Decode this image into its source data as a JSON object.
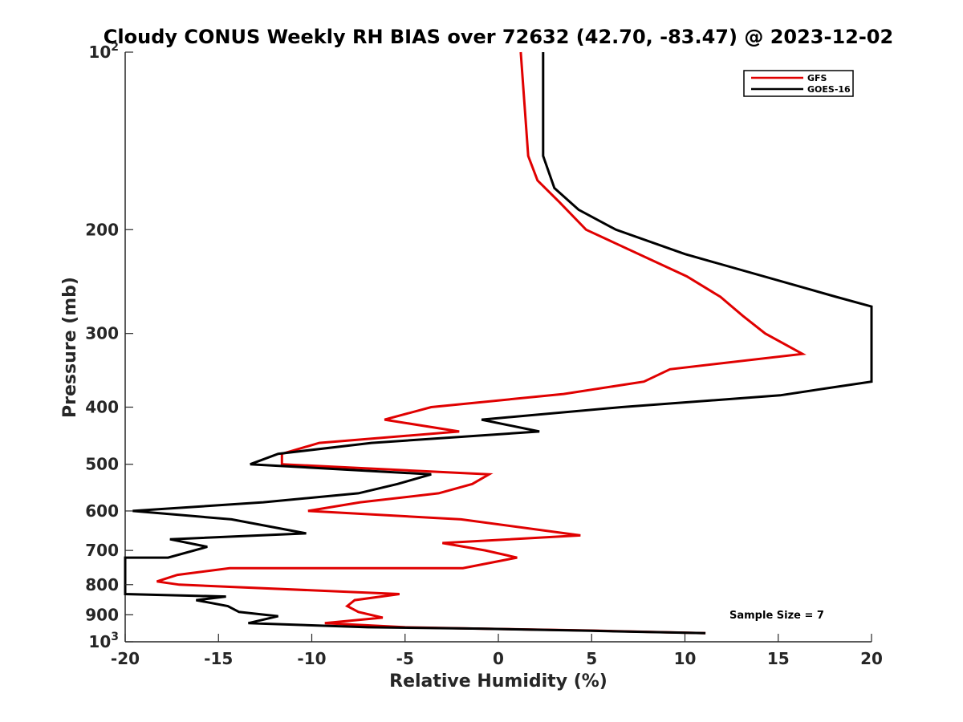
{
  "colors": {
    "GFS": "#e00000",
    "GOES-16": "#000000"
  },
  "chart_data": {
    "type": "line",
    "title": "Cloudy CONUS Weekly RH BIAS over 72632 (42.70, -83.47) @ 2023-12-02",
    "xlabel": "Relative Humidity (%)",
    "ylabel": "Pressure (mb)",
    "xlim": [
      -20,
      20
    ],
    "ylim": [
      100,
      1000
    ],
    "y_scale": "log",
    "y_reversed": true,
    "x_ticks": [
      "-20",
      "-15",
      "-10",
      "-5",
      "0",
      "5",
      "10",
      "15",
      "20"
    ],
    "y_ticks": [
      {
        "value": 100,
        "base": "10",
        "exp": "2"
      },
      {
        "value": 200,
        "label": "200"
      },
      {
        "value": 300,
        "label": "300"
      },
      {
        "value": 400,
        "label": "400"
      },
      {
        "value": 500,
        "label": "500"
      },
      {
        "value": 600,
        "label": "600"
      },
      {
        "value": 700,
        "label": "700"
      },
      {
        "value": 800,
        "label": "800"
      },
      {
        "value": 900,
        "label": "900"
      },
      {
        "value": 1000,
        "base": "10",
        "exp": "3"
      }
    ],
    "legend_position": "top-right",
    "grid": false,
    "annotation": "Sample Size = 7",
    "series": [
      {
        "name": "GFS",
        "points": [
          [
            1.2,
            100
          ],
          [
            1.6,
            150
          ],
          [
            2.1,
            165
          ],
          [
            3.3,
            180
          ],
          [
            4.7,
            200
          ],
          [
            10.1,
            240
          ],
          [
            11.9,
            260
          ],
          [
            13.1,
            280
          ],
          [
            14.3,
            300
          ],
          [
            16.3,
            325
          ],
          [
            9.2,
            345
          ],
          [
            7.8,
            362
          ],
          [
            3.5,
            380
          ],
          [
            -3.6,
            400
          ],
          [
            -6.1,
            420
          ],
          [
            -2.1,
            440
          ],
          [
            -9.6,
            460
          ],
          [
            -11.6,
            480
          ],
          [
            -11.6,
            500
          ],
          [
            -0.5,
            520
          ],
          [
            -1.4,
            540
          ],
          [
            -3.2,
            560
          ],
          [
            -7.4,
            580
          ],
          [
            -10.2,
            600
          ],
          [
            -2.0,
            620
          ],
          [
            4.4,
            660
          ],
          [
            -3.0,
            680
          ],
          [
            -0.7,
            700
          ],
          [
            1.0,
            720
          ],
          [
            -1.9,
            750
          ],
          [
            -14.4,
            750
          ],
          [
            -17.2,
            770
          ],
          [
            -18.3,
            790
          ],
          [
            -17.1,
            800
          ],
          [
            -5.3,
            830
          ],
          [
            -7.7,
            850
          ],
          [
            -8.1,
            870
          ],
          [
            -7.5,
            890
          ],
          [
            -6.2,
            910
          ],
          [
            -9.3,
            930
          ],
          [
            -5.0,
            945
          ],
          [
            -1.0,
            950
          ],
          [
            5.0,
            957
          ],
          [
            11.1,
            967
          ]
        ]
      },
      {
        "name": "GOES-16",
        "points": [
          [
            2.4,
            100
          ],
          [
            2.4,
            150
          ],
          [
            3.0,
            170
          ],
          [
            4.3,
            185
          ],
          [
            6.3,
            200
          ],
          [
            10.0,
            220
          ],
          [
            18.1,
            260
          ],
          [
            20.0,
            270
          ],
          [
            20.0,
            362
          ],
          [
            18.0,
            370
          ],
          [
            15.1,
            382
          ],
          [
            6.6,
            400
          ],
          [
            -0.9,
            420
          ],
          [
            2.2,
            440
          ],
          [
            -6.8,
            460
          ],
          [
            -11.8,
            480
          ],
          [
            -13.3,
            500
          ],
          [
            -3.6,
            520
          ],
          [
            -5.4,
            540
          ],
          [
            -7.5,
            560
          ],
          [
            -12.6,
            580
          ],
          [
            -19.6,
            600
          ],
          [
            -14.3,
            620
          ],
          [
            -10.3,
            655
          ],
          [
            -17.6,
            670
          ],
          [
            -15.6,
            690
          ],
          [
            -17.7,
            720
          ],
          [
            -20.0,
            720
          ],
          [
            -20.0,
            830
          ],
          [
            -14.6,
            838
          ],
          [
            -16.2,
            850
          ],
          [
            -14.5,
            870
          ],
          [
            -13.9,
            890
          ],
          [
            -11.8,
            905
          ],
          [
            -13.4,
            930
          ],
          [
            -7.0,
            945
          ],
          [
            -1.0,
            950
          ],
          [
            5.0,
            958
          ],
          [
            11.1,
            967
          ]
        ]
      }
    ]
  }
}
